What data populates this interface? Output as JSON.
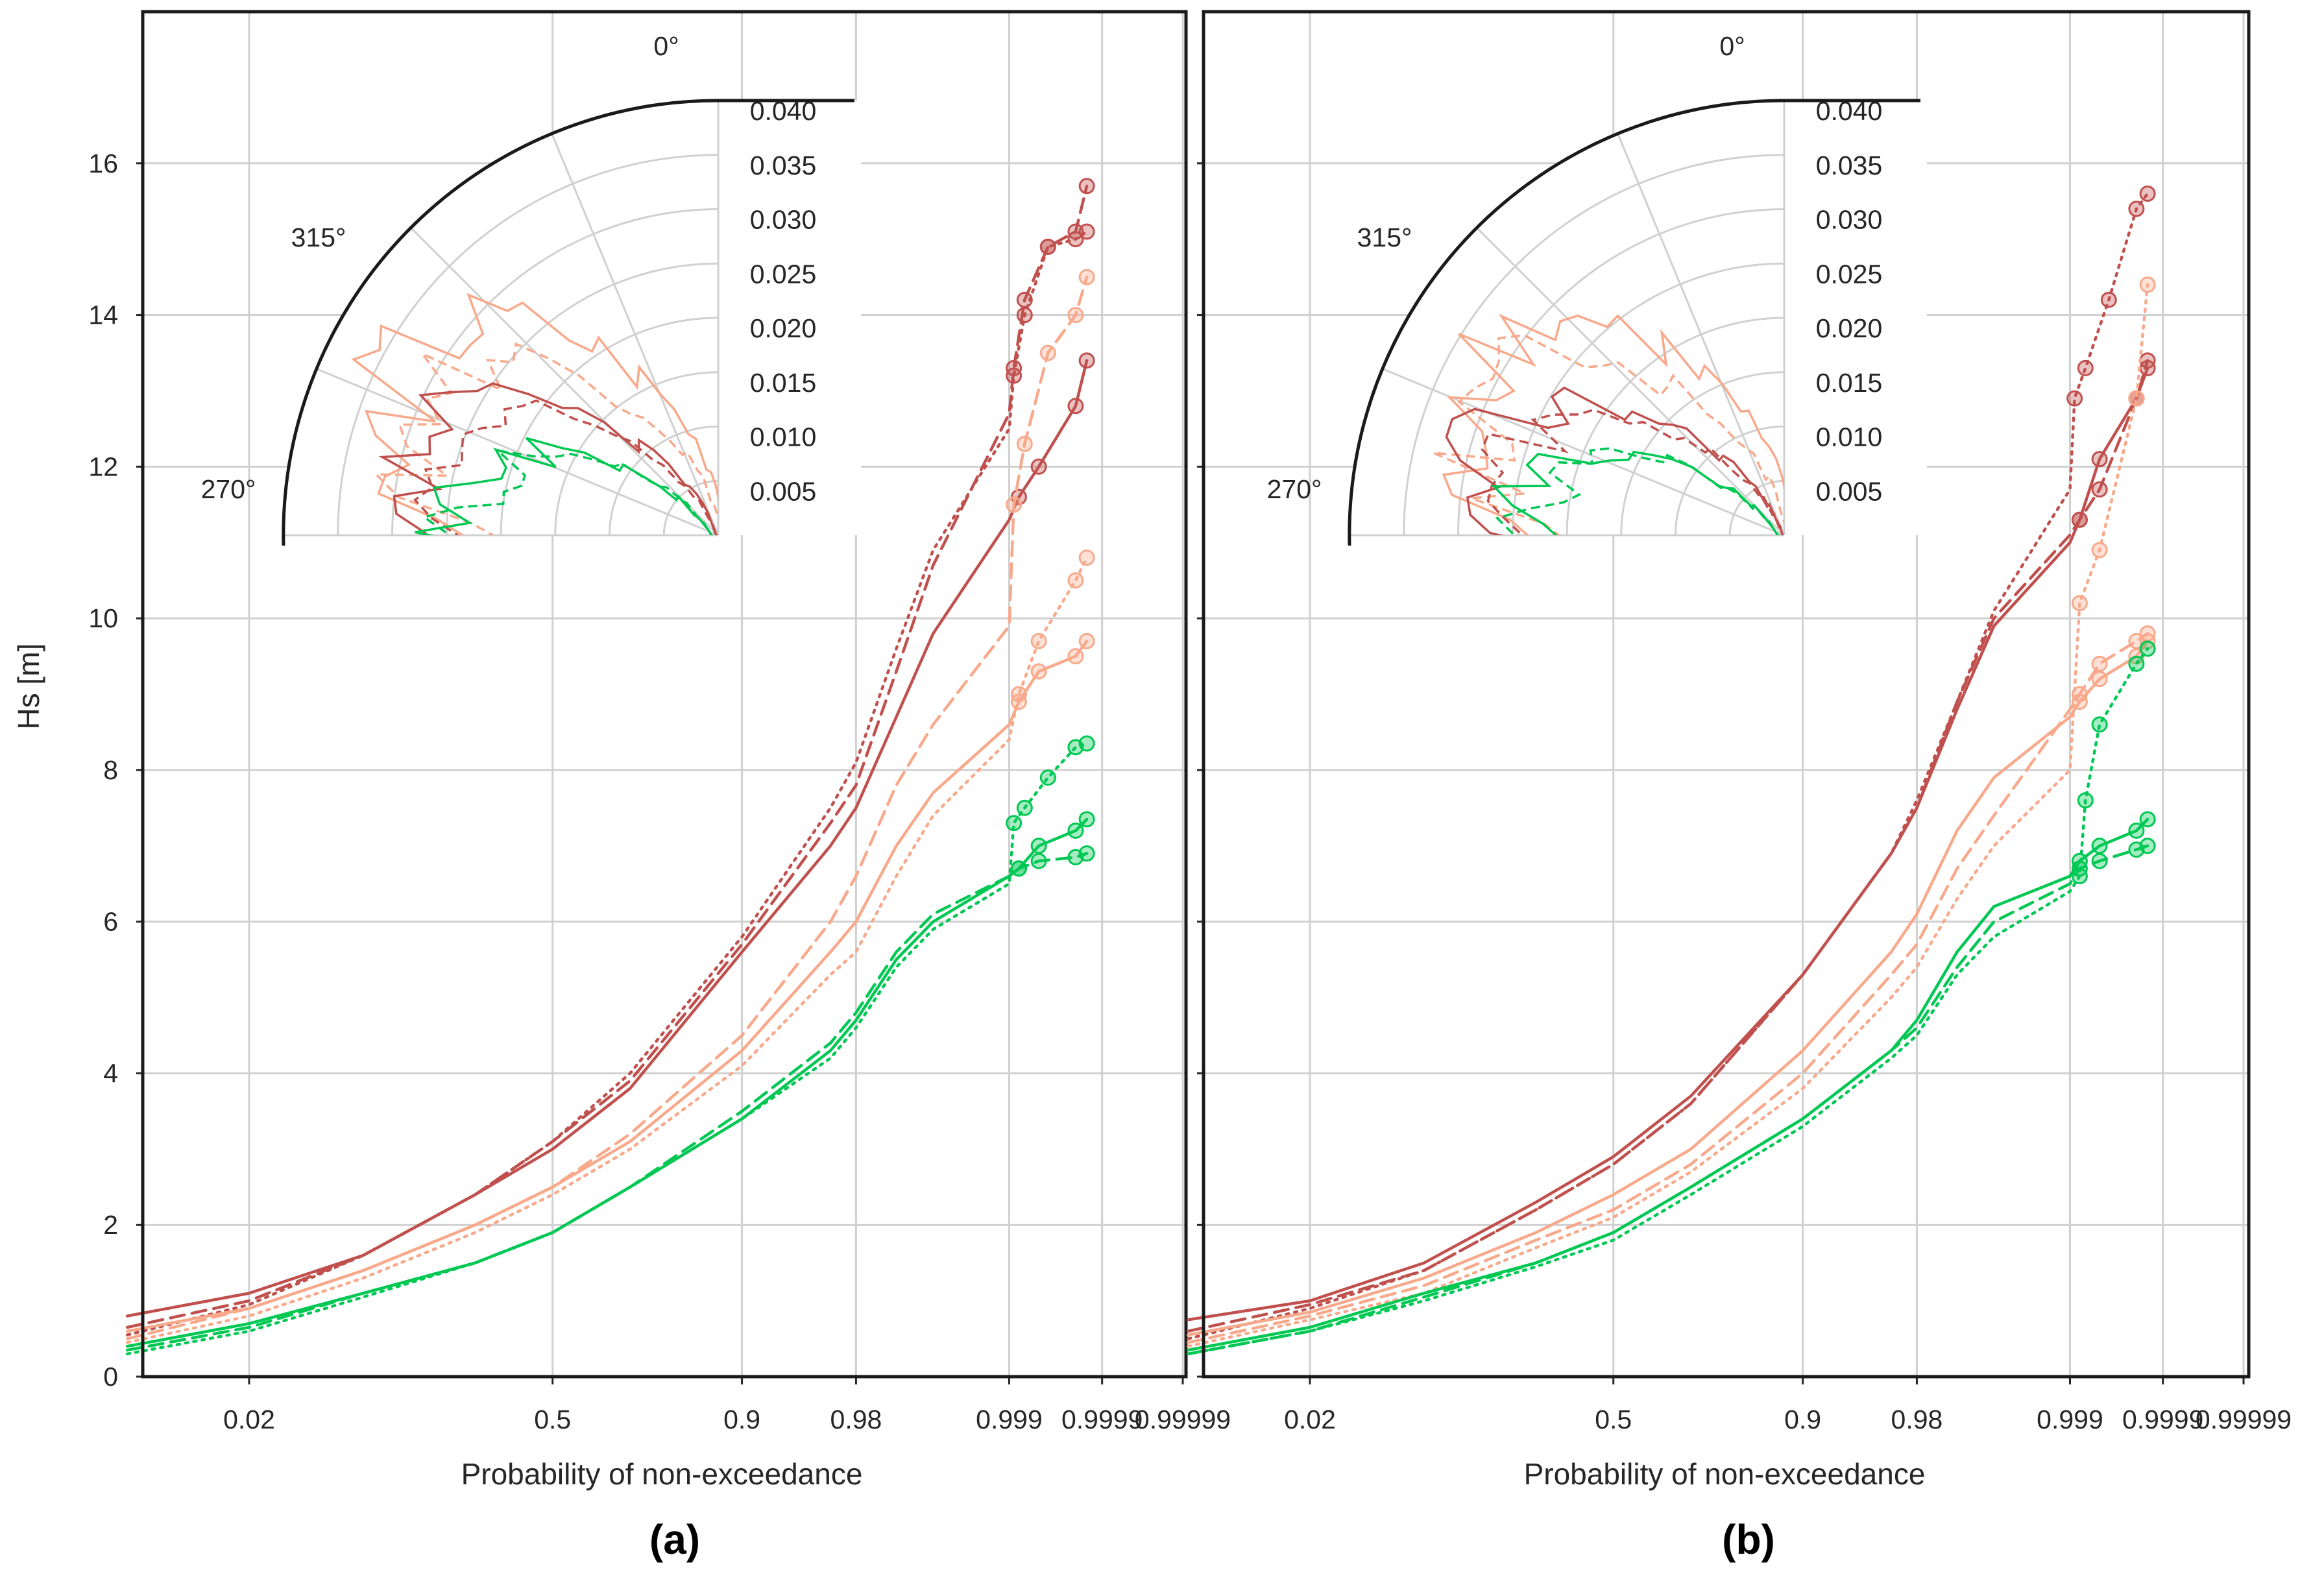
{
  "figure": {
    "ylabel": "Hs [m]",
    "xlabel": "Probability of non-exceedance",
    "panel_labels": [
      "(a)",
      "(b)"
    ]
  },
  "chart_data": [
    {
      "panel": "(a)",
      "type": "line",
      "xlabel": "Probability of non-exceedance",
      "ylabel": "Hs [m]",
      "x_scale": "normal-probability",
      "x_ticks": [
        0.02,
        0.5,
        0.9,
        0.98,
        0.999,
        0.9999,
        0.99999
      ],
      "x_tick_labels": [
        "0.02",
        "0.5",
        "0.9",
        "0.98",
        "0.999",
        "0.9999",
        "0.99999"
      ],
      "ylim": [
        0,
        18
      ],
      "y_ticks": [
        0,
        2,
        4,
        6,
        8,
        10,
        12,
        14,
        16
      ],
      "grid": true,
      "series": [
        {
          "name": "dark red solid",
          "color": "#c0504d",
          "dash": "solid",
          "x": [
            0.002,
            0.02,
            0.1,
            0.3,
            0.5,
            0.7,
            0.9,
            0.97,
            0.98,
            0.99,
            0.995,
            0.999,
            0.9992,
            0.9995,
            0.9998,
            0.99985
          ],
          "y": [
            0.8,
            1.1,
            1.6,
            2.4,
            3.0,
            3.8,
            5.6,
            7.0,
            7.5,
            8.7,
            9.8,
            11.3,
            11.6,
            12.0,
            12.8,
            13.4
          ]
        },
        {
          "name": "dark red dashed",
          "color": "#c0504d",
          "dash": "dashed",
          "x": [
            0.002,
            0.02,
            0.1,
            0.3,
            0.5,
            0.7,
            0.9,
            0.97,
            0.98,
            0.99,
            0.995,
            0.999,
            0.9991,
            0.9993,
            0.9996,
            0.9998,
            0.99985
          ],
          "y": [
            0.65,
            1.0,
            1.6,
            2.4,
            3.1,
            3.9,
            5.7,
            7.3,
            7.8,
            9.3,
            10.7,
            12.7,
            13.3,
            14.2,
            14.9,
            15.1,
            15.7
          ]
        },
        {
          "name": "dark red dotted",
          "color": "#c0504d",
          "dash": "dotted",
          "x": [
            0.002,
            0.02,
            0.1,
            0.3,
            0.5,
            0.7,
            0.9,
            0.97,
            0.98,
            0.99,
            0.995,
            0.999,
            0.9991,
            0.9993,
            0.9996,
            0.9998,
            0.99985
          ],
          "y": [
            0.55,
            0.95,
            1.6,
            2.4,
            3.1,
            4.0,
            5.8,
            7.5,
            8.1,
            9.6,
            10.9,
            12.5,
            13.2,
            14.0,
            14.9,
            15.0,
            15.1
          ]
        },
        {
          "name": "light orange solid",
          "color": "#f8a98b",
          "dash": "solid",
          "x": [
            0.002,
            0.02,
            0.1,
            0.3,
            0.5,
            0.7,
            0.9,
            0.97,
            0.98,
            0.99,
            0.995,
            0.999,
            0.9992,
            0.9995,
            0.9998,
            0.99985
          ],
          "y": [
            0.6,
            0.9,
            1.4,
            2.0,
            2.5,
            3.1,
            4.3,
            5.6,
            6.0,
            7.0,
            7.7,
            8.6,
            8.9,
            9.3,
            9.5,
            9.7
          ]
        },
        {
          "name": "light orange dashed",
          "color": "#f8a98b",
          "dash": "dashed",
          "x": [
            0.002,
            0.02,
            0.1,
            0.3,
            0.5,
            0.7,
            0.9,
            0.97,
            0.98,
            0.99,
            0.995,
            0.999,
            0.9991,
            0.9993,
            0.9996,
            0.9998,
            0.99985
          ],
          "y": [
            0.5,
            0.9,
            1.4,
            2.0,
            2.5,
            3.2,
            4.5,
            6.0,
            6.6,
            7.8,
            8.6,
            9.9,
            11.5,
            12.3,
            13.5,
            14.0,
            14.5
          ]
        },
        {
          "name": "light orange dotted",
          "color": "#f8a98b",
          "dash": "dotted",
          "x": [
            0.002,
            0.02,
            0.1,
            0.3,
            0.5,
            0.7,
            0.9,
            0.97,
            0.98,
            0.99,
            0.995,
            0.999,
            0.9992,
            0.9995,
            0.9998,
            0.99985
          ],
          "y": [
            0.45,
            0.8,
            1.3,
            1.9,
            2.4,
            3.0,
            4.1,
            5.3,
            5.6,
            6.6,
            7.4,
            8.4,
            9.0,
            9.7,
            10.5,
            10.8
          ]
        },
        {
          "name": "green solid",
          "color": "#00c853",
          "dash": "solid",
          "x": [
            0.002,
            0.02,
            0.1,
            0.3,
            0.5,
            0.7,
            0.9,
            0.97,
            0.98,
            0.99,
            0.995,
            0.999,
            0.9992,
            0.9995,
            0.9998,
            0.99985
          ],
          "y": [
            0.4,
            0.7,
            1.1,
            1.5,
            1.9,
            2.5,
            3.4,
            4.3,
            4.7,
            5.5,
            6.0,
            6.6,
            6.7,
            7.0,
            7.2,
            7.35
          ]
        },
        {
          "name": "green dashed",
          "color": "#00c853",
          "dash": "dashed",
          "x": [
            0.002,
            0.02,
            0.1,
            0.3,
            0.5,
            0.7,
            0.9,
            0.97,
            0.98,
            0.99,
            0.995,
            0.999,
            0.9992,
            0.9995,
            0.9998,
            0.99985
          ],
          "y": [
            0.35,
            0.65,
            1.1,
            1.5,
            1.9,
            2.5,
            3.5,
            4.4,
            4.8,
            5.6,
            6.1,
            6.6,
            6.7,
            6.8,
            6.85,
            6.9
          ]
        },
        {
          "name": "green dotted",
          "color": "#00c853",
          "dash": "dotted",
          "x": [
            0.002,
            0.02,
            0.1,
            0.3,
            0.5,
            0.7,
            0.9,
            0.97,
            0.98,
            0.99,
            0.995,
            0.999,
            0.9991,
            0.9993,
            0.9996,
            0.9998,
            0.99985
          ],
          "y": [
            0.3,
            0.6,
            1.05,
            1.5,
            1.9,
            2.5,
            3.4,
            4.2,
            4.6,
            5.4,
            5.9,
            6.5,
            7.3,
            7.5,
            7.9,
            8.3,
            8.35
          ]
        }
      ],
      "inset_polar": {
        "theta_labels": [
          "0°",
          "315°",
          "270°"
        ],
        "r_ticks": [
          0.005,
          0.01,
          0.015,
          0.02,
          0.025,
          0.03,
          0.035,
          0.04
        ],
        "r_tick_labels": [
          "0.005",
          "0.010",
          "0.015",
          "0.020",
          "0.025",
          "0.030",
          "0.035",
          "0.040"
        ],
        "r_max": 0.04
      }
    },
    {
      "panel": "(b)",
      "type": "line",
      "xlabel": "Probability of non-exceedance",
      "ylabel": "Hs [m]",
      "x_scale": "normal-probability",
      "x_ticks": [
        0.02,
        0.5,
        0.9,
        0.98,
        0.999,
        0.9999,
        0.99999
      ],
      "x_tick_labels": [
        "0.02",
        "0.5",
        "0.9",
        "0.98",
        "0.999",
        "0.9999",
        "0.99999"
      ],
      "ylim": [
        0,
        18
      ],
      "y_ticks": [
        0,
        2,
        4,
        6,
        8,
        10,
        12,
        14,
        16
      ],
      "grid": true,
      "series": [
        {
          "name": "dark red solid",
          "color": "#c0504d",
          "dash": "solid",
          "x": [
            0.002,
            0.02,
            0.1,
            0.3,
            0.5,
            0.7,
            0.9,
            0.97,
            0.98,
            0.99,
            0.995,
            0.999,
            0.9992,
            0.9995,
            0.9998,
            0.99985
          ],
          "y": [
            0.75,
            1.0,
            1.5,
            2.3,
            2.9,
            3.7,
            5.3,
            6.9,
            7.5,
            8.8,
            9.9,
            11.0,
            11.3,
            12.1,
            12.9,
            13.3
          ]
        },
        {
          "name": "dark red dashed",
          "color": "#c0504d",
          "dash": "dashed",
          "x": [
            0.002,
            0.02,
            0.1,
            0.3,
            0.5,
            0.7,
            0.9,
            0.97,
            0.98,
            0.99,
            0.995,
            0.999,
            0.9992,
            0.9995,
            0.9998,
            0.99985
          ],
          "y": [
            0.6,
            0.95,
            1.4,
            2.2,
            2.8,
            3.6,
            5.3,
            6.9,
            7.5,
            8.9,
            10.0,
            11.1,
            11.3,
            11.7,
            12.9,
            13.4
          ]
        },
        {
          "name": "dark red dotted",
          "color": "#c0504d",
          "dash": "dotted",
          "x": [
            0.002,
            0.02,
            0.1,
            0.3,
            0.5,
            0.7,
            0.9,
            0.97,
            0.98,
            0.99,
            0.995,
            0.999,
            0.9991,
            0.9993,
            0.9996,
            0.9998,
            0.99985
          ],
          "y": [
            0.5,
            0.9,
            1.4,
            2.2,
            2.8,
            3.6,
            5.3,
            6.9,
            7.6,
            8.9,
            10.1,
            11.7,
            12.9,
            13.3,
            14.2,
            15.4,
            15.6
          ]
        },
        {
          "name": "light orange solid",
          "color": "#f8a98b",
          "dash": "solid",
          "x": [
            0.002,
            0.02,
            0.1,
            0.3,
            0.5,
            0.7,
            0.9,
            0.97,
            0.98,
            0.99,
            0.995,
            0.999,
            0.9992,
            0.9995,
            0.9998,
            0.99985
          ],
          "y": [
            0.55,
            0.85,
            1.3,
            1.9,
            2.4,
            3.0,
            4.3,
            5.6,
            6.1,
            7.2,
            7.9,
            8.7,
            8.9,
            9.2,
            9.5,
            9.7
          ]
        },
        {
          "name": "light orange dashed",
          "color": "#f8a98b",
          "dash": "dashed",
          "x": [
            0.002,
            0.02,
            0.1,
            0.3,
            0.5,
            0.7,
            0.9,
            0.97,
            0.98,
            0.99,
            0.995,
            0.999,
            0.9992,
            0.9995,
            0.9998,
            0.99985
          ],
          "y": [
            0.45,
            0.8,
            1.2,
            1.8,
            2.2,
            2.8,
            4.0,
            5.3,
            5.7,
            6.7,
            7.4,
            8.8,
            9.0,
            9.4,
            9.7,
            9.8
          ]
        },
        {
          "name": "light orange dotted",
          "color": "#f8a98b",
          "dash": "dotted",
          "x": [
            0.002,
            0.02,
            0.1,
            0.3,
            0.5,
            0.7,
            0.9,
            0.97,
            0.98,
            0.99,
            0.995,
            0.999,
            0.9992,
            0.9995,
            0.9998,
            0.99985
          ],
          "y": [
            0.4,
            0.75,
            1.1,
            1.7,
            2.1,
            2.7,
            3.8,
            5.0,
            5.4,
            6.3,
            7.0,
            8.0,
            10.2,
            10.9,
            12.9,
            14.4
          ]
        },
        {
          "name": "green solid",
          "color": "#00c853",
          "dash": "solid",
          "x": [
            0.002,
            0.02,
            0.1,
            0.3,
            0.5,
            0.7,
            0.9,
            0.97,
            0.98,
            0.99,
            0.995,
            0.999,
            0.9992,
            0.9995,
            0.9998,
            0.99985
          ],
          "y": [
            0.35,
            0.65,
            1.1,
            1.5,
            1.9,
            2.5,
            3.4,
            4.3,
            4.7,
            5.6,
            6.2,
            6.6,
            6.8,
            7.0,
            7.2,
            7.35
          ]
        },
        {
          "name": "green dashed",
          "color": "#00c853",
          "dash": "dashed",
          "x": [
            0.002,
            0.02,
            0.1,
            0.3,
            0.5,
            0.7,
            0.9,
            0.97,
            0.98,
            0.99,
            0.995,
            0.999,
            0.9992,
            0.9995,
            0.9998,
            0.99985
          ],
          "y": [
            0.3,
            0.6,
            1.05,
            1.5,
            1.9,
            2.5,
            3.4,
            4.3,
            4.6,
            5.4,
            6.0,
            6.5,
            6.7,
            6.8,
            6.95,
            7.0
          ]
        },
        {
          "name": "green dotted",
          "color": "#00c853",
          "dash": "dotted",
          "x": [
            0.002,
            0.02,
            0.1,
            0.3,
            0.5,
            0.7,
            0.9,
            0.97,
            0.98,
            0.99,
            0.995,
            0.999,
            0.9992,
            0.9993,
            0.9995,
            0.9998,
            0.99985
          ],
          "y": [
            0.3,
            0.6,
            1.0,
            1.45,
            1.8,
            2.4,
            3.3,
            4.2,
            4.5,
            5.3,
            5.8,
            6.4,
            6.6,
            7.6,
            8.6,
            9.4,
            9.6
          ]
        }
      ],
      "inset_polar": {
        "theta_labels": [
          "0°",
          "315°",
          "270°"
        ],
        "r_ticks": [
          0.005,
          0.01,
          0.015,
          0.02,
          0.025,
          0.03,
          0.035,
          0.04
        ],
        "r_tick_labels": [
          "0.005",
          "0.010",
          "0.015",
          "0.020",
          "0.025",
          "0.030",
          "0.035",
          "0.040"
        ],
        "r_max": 0.04
      }
    }
  ]
}
